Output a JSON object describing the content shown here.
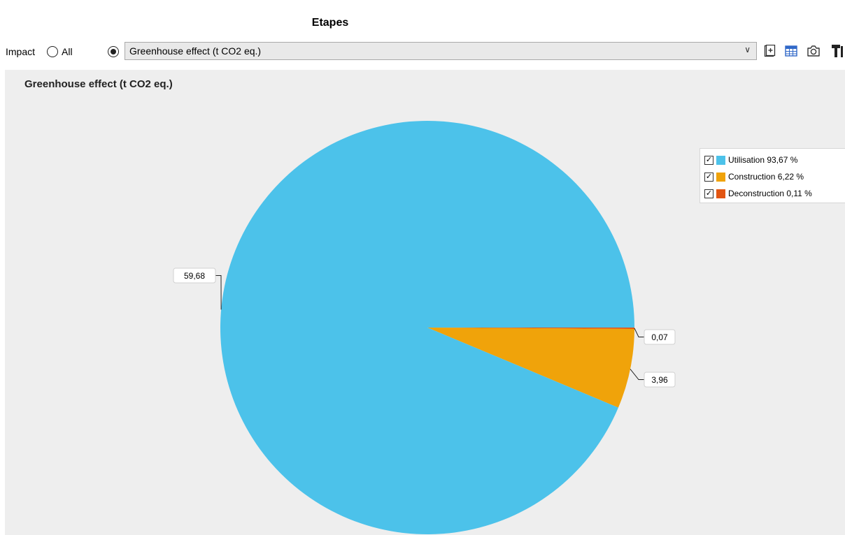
{
  "header": {
    "title": "Etapes"
  },
  "toolbar": {
    "impact_label": "Impact",
    "all_label": "All",
    "selected_impact": "Greenhouse effect (t CO2 eq.)",
    "icons": [
      "add-sheet-icon",
      "table-icon",
      "camera-icon",
      "paint-icon"
    ]
  },
  "colors": {
    "utilisation": "#4cc2ea",
    "construction": "#f0a30a",
    "deconstruction": "#e25512",
    "chart_background": "#eeeeee"
  },
  "chart_data": {
    "type": "pie",
    "title": "Greenhouse effect (t CO2 eq.)",
    "slices": [
      {
        "name": "Utilisation",
        "value": 59.68,
        "label": "59,68",
        "legend": "Utilisation 93,67 %",
        "color": "#4cc2ea"
      },
      {
        "name": "Construction",
        "value": 3.96,
        "label": "3,96",
        "legend": "Construction 6,22 %",
        "color": "#f0a30a"
      },
      {
        "name": "Deconstruction",
        "value": 0.07,
        "label": "0,07",
        "legend": "Deconstruction 0,11 %",
        "color": "#e25512"
      }
    ],
    "legend_position": "top-right",
    "legend_checked": true
  }
}
